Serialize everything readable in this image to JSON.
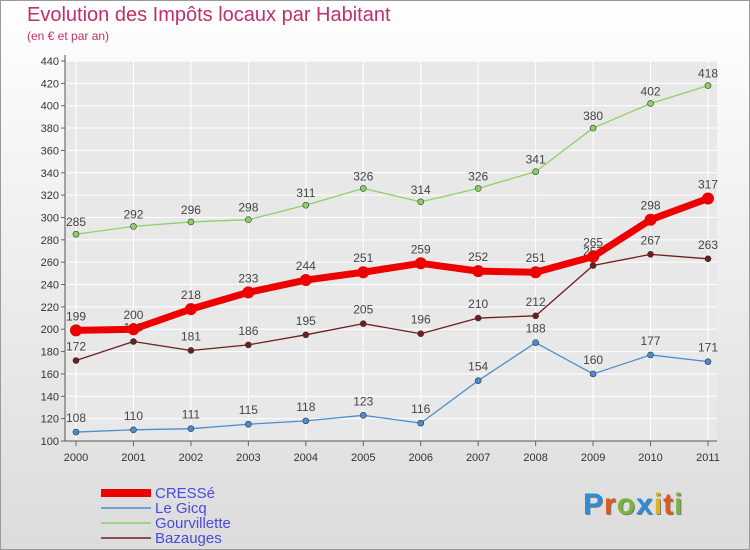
{
  "title": "Evolution des Impôts locaux par Habitant",
  "subtitle": "(en € et par an)",
  "logo": {
    "letters": [
      "P",
      "r",
      "o",
      "x",
      "i",
      "t",
      "i"
    ],
    "colors": [
      "#2a8fd6",
      "#e0581b",
      "#7ab43c",
      "#2a8fd6",
      "#e0b21b",
      "#e0581b",
      "#7ab43c"
    ]
  },
  "chart_data": {
    "type": "line",
    "title": "Evolution des Impôts locaux par Habitant",
    "subtitle": "(en € et par an)",
    "xlabel": "",
    "ylabel": "",
    "x": [
      "2000",
      "2001",
      "2002",
      "2003",
      "2004",
      "2005",
      "2006",
      "2007",
      "2008",
      "2009",
      "2010",
      "2011"
    ],
    "ylim": [
      100,
      440
    ],
    "yticks": [
      "100",
      "120",
      "140",
      "160",
      "180",
      "200",
      "220",
      "240",
      "260",
      "280",
      "300",
      "320",
      "340",
      "360",
      "380",
      "400",
      "420",
      "440"
    ],
    "grid": true,
    "legend": "bottom-left",
    "series": [
      {
        "name": "CRESSé",
        "color": "#ee0000",
        "values": [
          199,
          200,
          218,
          233,
          244,
          251,
          259,
          252,
          251,
          265,
          298,
          317
        ],
        "labels": [
          "199",
          "200",
          "218",
          "233",
          "244",
          "251",
          "259",
          "252",
          "251",
          "265",
          "298",
          "317"
        ]
      },
      {
        "name": "Le Gicq",
        "color": "#4a8ed0",
        "values": [
          108,
          110,
          111,
          115,
          118,
          123,
          116,
          154,
          188,
          160,
          177,
          171
        ],
        "labels": [
          "108",
          "110",
          "111",
          "115",
          "118",
          "123",
          "116",
          "154",
          "188",
          "160",
          "177",
          "171"
        ]
      },
      {
        "name": "Gourvillette",
        "color": "#8ed068",
        "values": [
          285,
          292,
          296,
          298,
          311,
          326,
          314,
          326,
          341,
          380,
          402,
          418
        ],
        "labels": [
          "285",
          "292",
          "296",
          "298",
          "311",
          "326",
          "314",
          "326",
          "341",
          "380",
          "402",
          "418"
        ]
      },
      {
        "name": "Bazauges",
        "color": "#6e1e1e",
        "values": [
          172,
          189,
          181,
          186,
          195,
          205,
          196,
          210,
          212,
          257,
          267,
          263
        ],
        "labels": [
          "172",
          "189",
          "181",
          "186",
          "195",
          "205",
          "196",
          "210",
          "212",
          "257",
          "267",
          "263"
        ]
      }
    ]
  }
}
